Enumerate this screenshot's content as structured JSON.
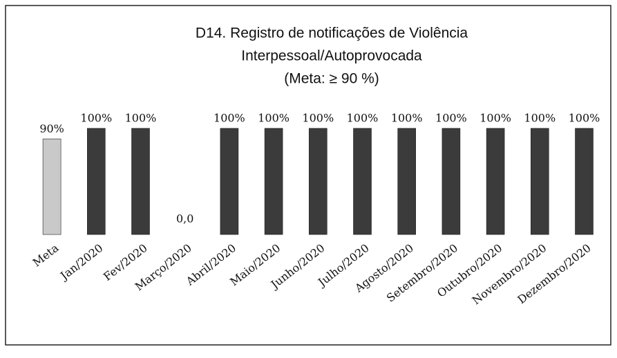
{
  "chart_data": {
    "type": "bar",
    "title": [
      "D14. Registro de notificações de Violência",
      "Interpessoal/Autoprovocada",
      "(Meta: ≥ 90 %)"
    ],
    "categories": [
      "Meta",
      "Jan/2020",
      "Fev/2020",
      "Março/2020",
      "Abril/2020",
      "Maio/2020",
      "Junho/2020",
      "Julho/2020",
      "Agosto/2020",
      "Setembro/2020",
      "Outubro/2020",
      "Novembro/2020",
      "Dezembro/2020"
    ],
    "values": [
      90,
      100,
      100,
      0,
      100,
      100,
      100,
      100,
      100,
      100,
      100,
      100,
      100
    ],
    "value_labels": [
      "90%",
      "100%",
      "100%",
      "0,0",
      "100%",
      "100%",
      "100%",
      "100%",
      "100%",
      "100%",
      "100%",
      "100%",
      "100%"
    ],
    "colors": [
      "#c9c9c9",
      "#3b3b3b",
      "#3b3b3b",
      "#3b3b3b",
      "#3b3b3b",
      "#3b3b3b",
      "#3b3b3b",
      "#3b3b3b",
      "#3b3b3b",
      "#3b3b3b",
      "#3b3b3b",
      "#3b3b3b",
      "#3b3b3b"
    ],
    "ylim": [
      0,
      100
    ]
  }
}
